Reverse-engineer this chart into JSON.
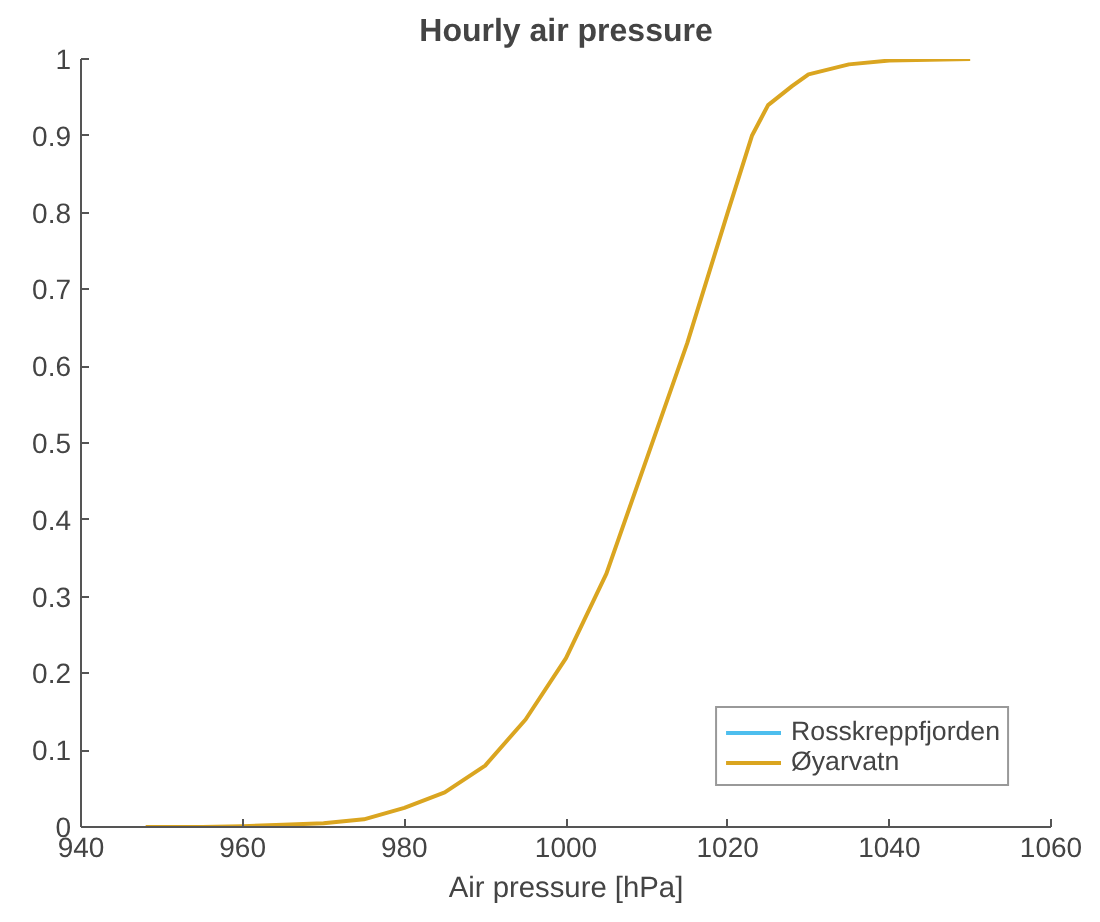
{
  "chart_data": {
    "type": "line",
    "title": "Hourly air pressure",
    "xlabel": "Air pressure [hPa]",
    "x": [
      948,
      955,
      960,
      965,
      970,
      975,
      980,
      985,
      990,
      995,
      1000,
      1005,
      1010,
      1015,
      1020,
      1023,
      1025,
      1028,
      1030,
      1035,
      1040,
      1045,
      1050
    ],
    "series": [
      {
        "name": "Rosskreppfjorden",
        "color": "#4dbeee",
        "values": [
          null,
          null,
          null,
          null,
          null,
          null,
          null,
          null,
          null,
          null,
          null,
          null,
          null,
          null,
          null,
          null,
          null,
          null,
          null,
          null,
          null,
          null,
          null
        ]
      },
      {
        "name": "Øyarvatn",
        "color": "#daa520",
        "values": [
          0,
          0,
          0.001,
          0.003,
          0.005,
          0.01,
          0.025,
          0.045,
          0.08,
          0.14,
          0.22,
          0.33,
          0.48,
          0.63,
          0.8,
          0.9,
          0.94,
          0.965,
          0.98,
          0.993,
          0.998,
          0.999,
          1
        ]
      }
    ],
    "xlim": [
      940,
      1060
    ],
    "xticks": [
      940,
      960,
      980,
      1000,
      1020,
      1040,
      1060
    ],
    "ylim": [
      0,
      1
    ],
    "yticks": [
      0,
      0.1,
      0.2,
      0.3,
      0.4,
      0.5,
      0.6,
      0.7,
      0.8,
      0.9,
      1
    ],
    "grid": false,
    "legend": "bottom right"
  }
}
